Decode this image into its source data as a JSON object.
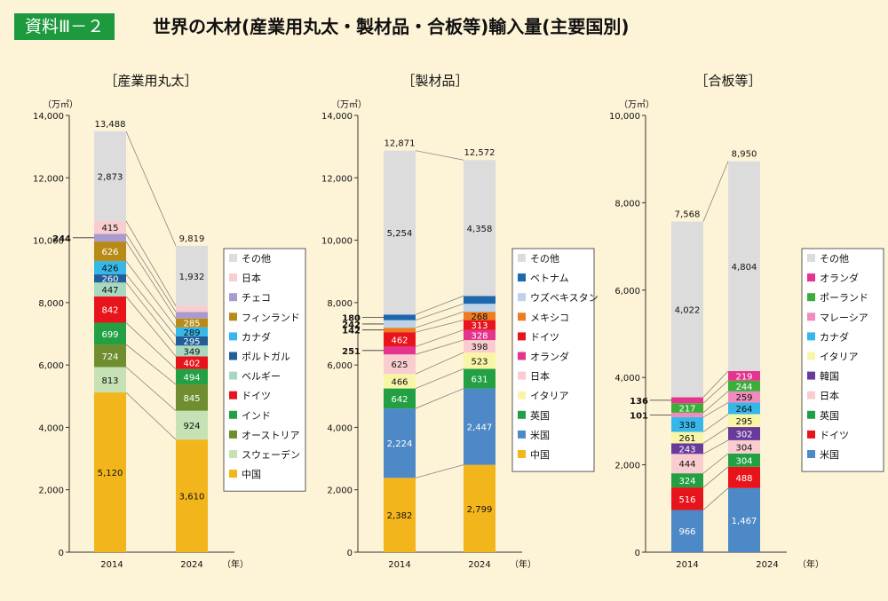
{
  "header": {
    "badge": "資料Ⅲ－２",
    "title": "世界の木材(産業用丸太・製材品・合板等)輸入量(主要国別)"
  },
  "colors": {
    "background": "#fdf3d6",
    "badge": "#1e9a3e",
    "その他": "#dcdcdc",
    "日本": "#f9cdd0",
    "チェコ": "#a99ad0",
    "フィンランド": "#b88b18",
    "カナダ": "#36b7ea",
    "ポルトガル": "#215d96",
    "ベルギー": "#a8d8c0",
    "ドイツ": "#e8141b",
    "インド": "#23a043",
    "オーストリア": "#6e8e2f",
    "スウェーデン": "#c6e1b4",
    "中国": "#f2b51c",
    "ベトナム": "#1f67ad",
    "ウズベキスタン": "#bed3ea",
    "メキシコ": "#ee7d22",
    "オランダ": "#e4348e",
    "イタリア": "#f9f5a8",
    "英国": "#23a043",
    "米国": "#4d89c7",
    "ポーランド": "#3bad3b",
    "マレーシア": "#ef8bbd",
    "韓国": "#6a3a9a"
  },
  "chart_data": [
    {
      "type": "bar",
      "stacked": true,
      "title": "［産業用丸太］",
      "unit": "（万㎥）",
      "year_unit": "（年）",
      "categories": [
        "2014",
        "2024"
      ],
      "ylim": [
        0,
        14000
      ],
      "yticks": [
        "0",
        "2,000",
        "4,000",
        "6,000",
        "8,000",
        "10,000",
        "12,000",
        "14,000"
      ],
      "totals": [
        "13,488",
        "9,819"
      ],
      "series": [
        {
          "name": "中国",
          "values": [
            5120,
            3610
          ],
          "labels": [
            "5,120",
            "3,610"
          ]
        },
        {
          "name": "スウェーデン",
          "values": [
            813,
            924
          ],
          "labels": [
            "813",
            "924"
          ]
        },
        {
          "name": "オーストリア",
          "values": [
            724,
            845
          ],
          "labels": [
            "724",
            "845"
          ]
        },
        {
          "name": "インド",
          "values": [
            699,
            494
          ],
          "labels": [
            "699",
            "494"
          ]
        },
        {
          "name": "ドイツ",
          "values": [
            842,
            402
          ],
          "labels": [
            "842",
            "402"
          ]
        },
        {
          "name": "ベルギー",
          "values": [
            447,
            349
          ],
          "labels": [
            "447",
            "349"
          ]
        },
        {
          "name": "ポルトガル",
          "values": [
            260,
            295
          ],
          "labels": [
            "260",
            "295"
          ]
        },
        {
          "name": "カナダ",
          "values": [
            426,
            289
          ],
          "labels": [
            "426",
            "289"
          ]
        },
        {
          "name": "フィンランド",
          "values": [
            626,
            285
          ],
          "labels": [
            "626",
            "285"
          ]
        },
        {
          "name": "チェコ",
          "values": [
            244,
            210
          ],
          "labels": [
            "244",
            "210"
          ]
        },
        {
          "name": "日本",
          "values": [
            415,
            185
          ],
          "labels": [
            "415",
            "185"
          ]
        },
        {
          "name": "その他",
          "values": [
            2873,
            1932
          ],
          "labels": [
            "2,873",
            "1,932"
          ]
        }
      ],
      "legend": [
        "その他",
        "日本",
        "チェコ",
        "フィンランド",
        "カナダ",
        "ポルトガル",
        "ベルギー",
        "ドイツ",
        "インド",
        "オーストリア",
        "スウェーデン",
        "中国"
      ]
    },
    {
      "type": "bar",
      "stacked": true,
      "title": "［製材品］",
      "unit": "（万㎥）",
      "year_unit": "（年）",
      "categories": [
        "2014",
        "2024"
      ],
      "ylim": [
        0,
        14000
      ],
      "yticks": [
        "0",
        "2,000",
        "4,000",
        "6,000",
        "8,000",
        "10,000",
        "12,000",
        "14,000"
      ],
      "totals": [
        "12,871",
        "12,572"
      ],
      "series": [
        {
          "name": "中国",
          "values": [
            2382,
            2799
          ],
          "labels": [
            "2,382",
            "2,799"
          ]
        },
        {
          "name": "米国",
          "values": [
            2224,
            2447
          ],
          "labels": [
            "2,224",
            "2,447"
          ]
        },
        {
          "name": "英国",
          "values": [
            642,
            631
          ],
          "labels": [
            "642",
            "631"
          ]
        },
        {
          "name": "イタリア",
          "values": [
            466,
            523
          ],
          "labels": [
            "466",
            "523"
          ]
        },
        {
          "name": "日本",
          "values": [
            625,
            398
          ],
          "labels": [
            "625",
            "398"
          ]
        },
        {
          "name": "オランダ",
          "values": [
            251,
            328
          ],
          "labels": [
            "251",
            "328"
          ]
        },
        {
          "name": "ドイツ",
          "values": [
            462,
            313
          ],
          "labels": [
            "462",
            "313"
          ]
        },
        {
          "name": "メキシコ",
          "values": [
            142,
            268
          ],
          "labels": [
            "142",
            "268"
          ]
        },
        {
          "name": "ウズベキスタン",
          "values": [
            242,
            255
          ],
          "labels": [
            "242",
            "255"
          ]
        },
        {
          "name": "ベトナム",
          "values": [
            180,
            251
          ],
          "labels": [
            "180",
            "251"
          ]
        },
        {
          "name": "その他",
          "values": [
            5254,
            4358
          ],
          "labels": [
            "5,254",
            "4,358"
          ]
        }
      ],
      "legend": [
        "その他",
        "ベトナム",
        "ウズベキスタン",
        "メキシコ",
        "ドイツ",
        "オランダ",
        "日本",
        "イタリア",
        "英国",
        "米国",
        "中国"
      ]
    },
    {
      "type": "bar",
      "stacked": true,
      "title": "［合板等］",
      "unit": "（万㎥）",
      "year_unit": "（年）",
      "categories": [
        "2014",
        "2024"
      ],
      "ylim": [
        0,
        10000
      ],
      "yticks": [
        "0",
        "2,000",
        "4,000",
        "6,000",
        "8,000",
        "10,000"
      ],
      "totals": [
        "7,568",
        "8,950"
      ],
      "series": [
        {
          "name": "米国",
          "values": [
            966,
            1467
          ],
          "labels": [
            "966",
            "1,467"
          ]
        },
        {
          "name": "ドイツ",
          "values": [
            516,
            488
          ],
          "labels": [
            "516",
            "488"
          ]
        },
        {
          "name": "英国",
          "values": [
            324,
            304
          ],
          "labels": [
            "324",
            "304"
          ]
        },
        {
          "name": "日本",
          "values": [
            444,
            304
          ],
          "labels": [
            "444",
            "304"
          ]
        },
        {
          "name": "韓国",
          "values": [
            243,
            302
          ],
          "labels": [
            "243",
            "302"
          ]
        },
        {
          "name": "イタリア",
          "values": [
            261,
            295
          ],
          "labels": [
            "261",
            "295"
          ]
        },
        {
          "name": "カナダ",
          "values": [
            338,
            264
          ],
          "labels": [
            "338",
            "264"
          ]
        },
        {
          "name": "マレーシア",
          "values": [
            101,
            259
          ],
          "labels": [
            "101",
            "259"
          ]
        },
        {
          "name": "ポーランド",
          "values": [
            217,
            244
          ],
          "labels": [
            "217",
            "244"
          ]
        },
        {
          "name": "オランダ",
          "values": [
            136,
            219
          ],
          "labels": [
            "136",
            "219"
          ]
        },
        {
          "name": "その他",
          "values": [
            4022,
            4804
          ],
          "labels": [
            "4,022",
            "4,804"
          ]
        }
      ],
      "legend": [
        "その他",
        "オランダ",
        "ポーランド",
        "マレーシア",
        "カナダ",
        "イタリア",
        "韓国",
        "日本",
        "英国",
        "ドイツ",
        "米国"
      ]
    }
  ]
}
